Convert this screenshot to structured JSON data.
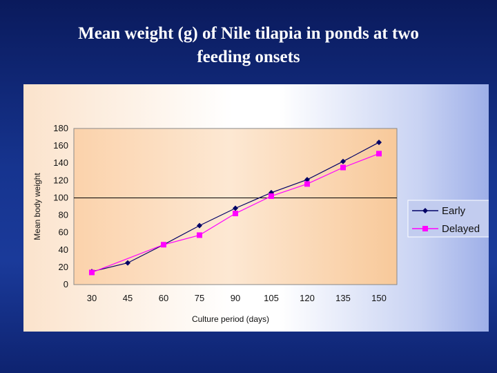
{
  "slide": {
    "title_line1": "Mean weight (g) of Nile tilapia in ponds at two",
    "title_line2": "feeding onsets"
  },
  "chart_data": {
    "type": "line",
    "title": "Mean weight (g) of Nile tilapia in ponds at two feeding onsets",
    "xlabel": "Culture period (days)",
    "ylabel": "Mean body weight",
    "categories": [
      "30",
      "45",
      "60",
      "75",
      "90",
      "105",
      "120",
      "135",
      "150"
    ],
    "ylim": [
      0,
      180
    ],
    "yticks": [
      0,
      20,
      40,
      60,
      80,
      100,
      120,
      140,
      160,
      180
    ],
    "reference_line": 100,
    "legend_position": "right",
    "series": [
      {
        "name": "Early",
        "color": "#000066",
        "marker": "diamond",
        "values": [
          15,
          25,
          46,
          68,
          88,
          106,
          121,
          142,
          164
        ]
      },
      {
        "name": "Delayed",
        "color": "#ff00ff",
        "marker": "square",
        "values": [
          14,
          null,
          46,
          57,
          82,
          102,
          116,
          135,
          151
        ]
      }
    ]
  }
}
